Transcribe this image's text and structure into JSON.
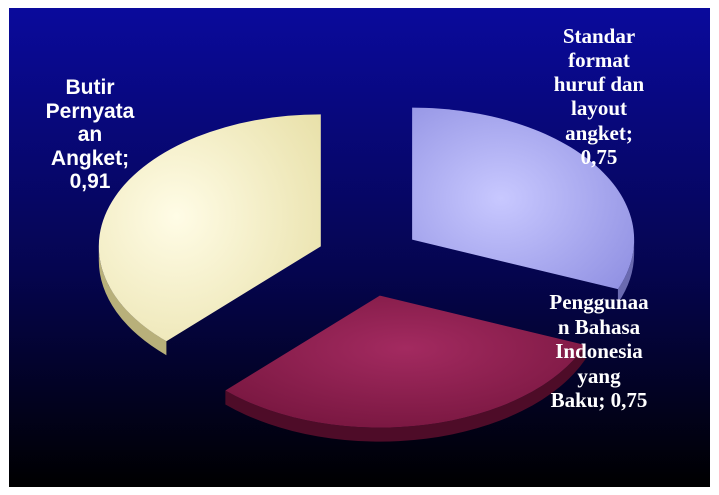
{
  "chart_data": {
    "type": "pie",
    "style": "3d-exploded",
    "title": "",
    "slices": [
      {
        "label": "Butir\nPernyata\nan\nAngket;\n0,91",
        "category": "Butir Pernyataan Angket",
        "value": 0.91,
        "display_value": "0,91",
        "color": "#f6f0c2"
      },
      {
        "label": "Standar\nformat\nhuruf dan\nlayout\nangket;\n0,75",
        "category": "Standar format huruf dan layout angket",
        "value": 0.75,
        "display_value": "0,75",
        "color": "#a9a9ef"
      },
      {
        "label": "Penggunaa\nn Bahasa\nIndonesia\nyang\nBaku; 0,75",
        "category": "Penggunaan Bahasa Indonesia yang Baku",
        "value": 0.75,
        "display_value": "0,75",
        "color": "#8a1f4e"
      }
    ],
    "background": {
      "top": "#0a0aa0",
      "bottom": "#000000"
    },
    "legend": "none"
  }
}
